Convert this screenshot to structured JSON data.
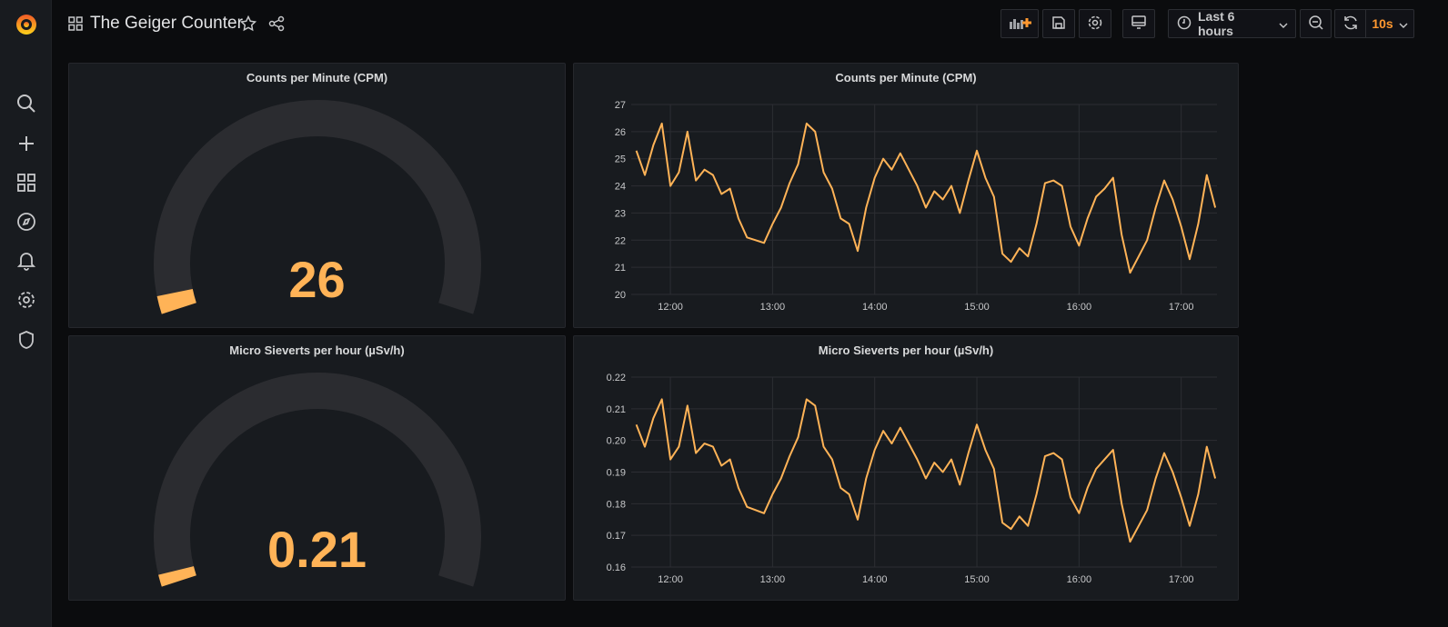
{
  "header": {
    "title": "The Geiger Counter",
    "time_range": "Last 6 hours",
    "refresh": "10s"
  },
  "colors": {
    "series": "#ffb357",
    "accent": "#ff9830",
    "gauge_track": "#2b2c30"
  },
  "sidebar": {
    "items": [
      "search-icon",
      "plus-icon",
      "dashboards-icon",
      "explore-icon",
      "alert-bell-icon",
      "gear-icon",
      "shield-icon"
    ]
  },
  "panels": {
    "cpm_gauge": {
      "title": "Counts per Minute (CPM)",
      "value": "26",
      "fill": 0.03
    },
    "usv_gauge": {
      "title": "Micro Sieverts per hour (µSv/h)",
      "value": "0.21",
      "fill": 0.02
    }
  },
  "chart_data": [
    {
      "type": "line",
      "title": "Counts per Minute (CPM)",
      "x_start": "11:40",
      "interval_min": 5,
      "xticks": [
        "12:00",
        "13:00",
        "14:00",
        "15:00",
        "16:00",
        "17:00"
      ],
      "yticks": [
        "20",
        "21",
        "22",
        "23",
        "24",
        "25",
        "26",
        "27"
      ],
      "ylim": [
        20,
        27
      ],
      "values": [
        25.3,
        24.4,
        25.5,
        26.3,
        24.0,
        24.5,
        26.0,
        24.2,
        24.6,
        24.4,
        23.7,
        23.9,
        22.8,
        22.1,
        22.0,
        21.9,
        22.6,
        23.2,
        24.1,
        24.8,
        26.3,
        26.0,
        24.5,
        23.9,
        22.8,
        22.6,
        21.6,
        23.2,
        24.3,
        25.0,
        24.6,
        25.2,
        24.6,
        24.0,
        23.2,
        23.8,
        23.5,
        24.0,
        23.0,
        24.2,
        25.3,
        24.3,
        23.6,
        21.5,
        21.2,
        21.7,
        21.4,
        22.6,
        24.1,
        24.2,
        24.0,
        22.5,
        21.8,
        22.8,
        23.6,
        23.9,
        24.3,
        22.2,
        20.8,
        21.4,
        22.0,
        23.2,
        24.2,
        23.5,
        22.5,
        21.3,
        22.6,
        24.4,
        23.2
      ]
    },
    {
      "type": "line",
      "title": "Micro Sieverts per hour (µSv/h)",
      "x_start": "11:40",
      "interval_min": 5,
      "xticks": [
        "12:00",
        "13:00",
        "14:00",
        "15:00",
        "16:00",
        "17:00"
      ],
      "yticks": [
        "0.16",
        "0.17",
        "0.18",
        "0.19",
        "0.20",
        "0.21",
        "0.22"
      ],
      "ylim": [
        0.16,
        0.22
      ],
      "values": [
        0.205,
        0.198,
        0.207,
        0.213,
        0.194,
        0.198,
        0.211,
        0.196,
        0.199,
        0.198,
        0.192,
        0.194,
        0.185,
        0.179,
        0.178,
        0.177,
        0.183,
        0.188,
        0.195,
        0.201,
        0.213,
        0.211,
        0.198,
        0.194,
        0.185,
        0.183,
        0.175,
        0.188,
        0.197,
        0.203,
        0.199,
        0.204,
        0.199,
        0.194,
        0.188,
        0.193,
        0.19,
        0.194,
        0.186,
        0.196,
        0.205,
        0.197,
        0.191,
        0.174,
        0.172,
        0.176,
        0.173,
        0.183,
        0.195,
        0.196,
        0.194,
        0.182,
        0.177,
        0.185,
        0.191,
        0.194,
        0.197,
        0.18,
        0.168,
        0.173,
        0.178,
        0.188,
        0.196,
        0.19,
        0.182,
        0.173,
        0.183,
        0.198,
        0.188
      ]
    }
  ]
}
